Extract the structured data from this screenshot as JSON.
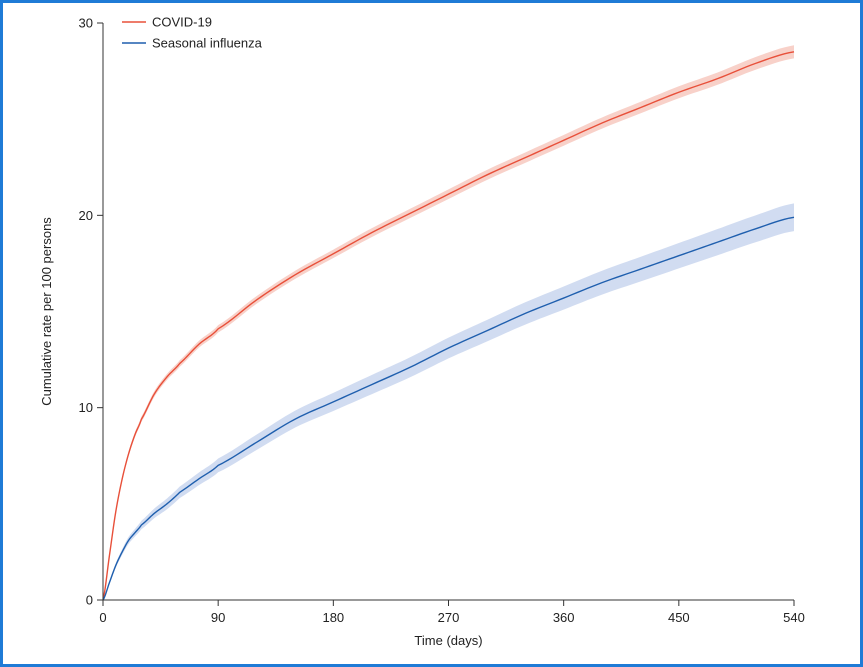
{
  "chart_data": {
    "type": "line",
    "title": "",
    "xlabel": "Time (days)",
    "ylabel": "Cumulative rate per 100 persons",
    "xlim": [
      0,
      540
    ],
    "ylim": [
      0,
      30
    ],
    "x_ticks": [
      "0",
      "90",
      "180",
      "270",
      "360",
      "450",
      "540"
    ],
    "y_ticks": [
      "0",
      "10",
      "20",
      "30"
    ],
    "x_tick_values": [
      0,
      90,
      180,
      270,
      360,
      450,
      540
    ],
    "y_tick_values": [
      0,
      10,
      20,
      30
    ],
    "grid": false,
    "legend_position": "top-left",
    "series": [
      {
        "name": "COVID-19",
        "color": "#e8503a",
        "band_color": "#f7c9bf",
        "x": [
          0,
          5,
          10,
          15,
          20,
          25,
          30,
          40,
          50,
          60,
          75,
          90,
          120,
          150,
          180,
          210,
          240,
          270,
          300,
          330,
          360,
          390,
          420,
          450,
          480,
          510,
          540
        ],
        "y": [
          0,
          2.3,
          4.6,
          6.3,
          7.6,
          8.6,
          9.4,
          10.7,
          11.6,
          12.3,
          13.3,
          14.1,
          15.6,
          16.9,
          18.0,
          19.1,
          20.1,
          21.1,
          22.1,
          23.0,
          23.9,
          24.8,
          25.6,
          26.4,
          27.1,
          27.9,
          28.5
        ],
        "band_width": [
          0,
          0.05,
          0.08,
          0.1,
          0.12,
          0.13,
          0.14,
          0.15,
          0.16,
          0.17,
          0.18,
          0.19,
          0.2,
          0.21,
          0.22,
          0.23,
          0.24,
          0.25,
          0.26,
          0.27,
          0.28,
          0.29,
          0.3,
          0.31,
          0.32,
          0.33,
          0.34
        ]
      },
      {
        "name": "Seasonal influenza",
        "color": "#1f5fae",
        "band_color": "#c9d6ee",
        "x": [
          0,
          5,
          10,
          15,
          20,
          25,
          30,
          40,
          50,
          60,
          75,
          90,
          120,
          150,
          180,
          210,
          240,
          270,
          300,
          330,
          360,
          390,
          420,
          450,
          480,
          510,
          540
        ],
        "y": [
          0,
          0.9,
          1.8,
          2.5,
          3.1,
          3.5,
          3.9,
          4.5,
          5.0,
          5.6,
          6.3,
          7.0,
          8.2,
          9.4,
          10.3,
          11.2,
          12.1,
          13.1,
          14.0,
          14.9,
          15.7,
          16.5,
          17.2,
          17.9,
          18.6,
          19.3,
          19.9
        ],
        "band_width": [
          0,
          0.08,
          0.12,
          0.15,
          0.18,
          0.2,
          0.22,
          0.25,
          0.28,
          0.3,
          0.33,
          0.36,
          0.4,
          0.44,
          0.47,
          0.5,
          0.52,
          0.54,
          0.56,
          0.58,
          0.6,
          0.62,
          0.64,
          0.66,
          0.68,
          0.7,
          0.72
        ]
      }
    ]
  }
}
